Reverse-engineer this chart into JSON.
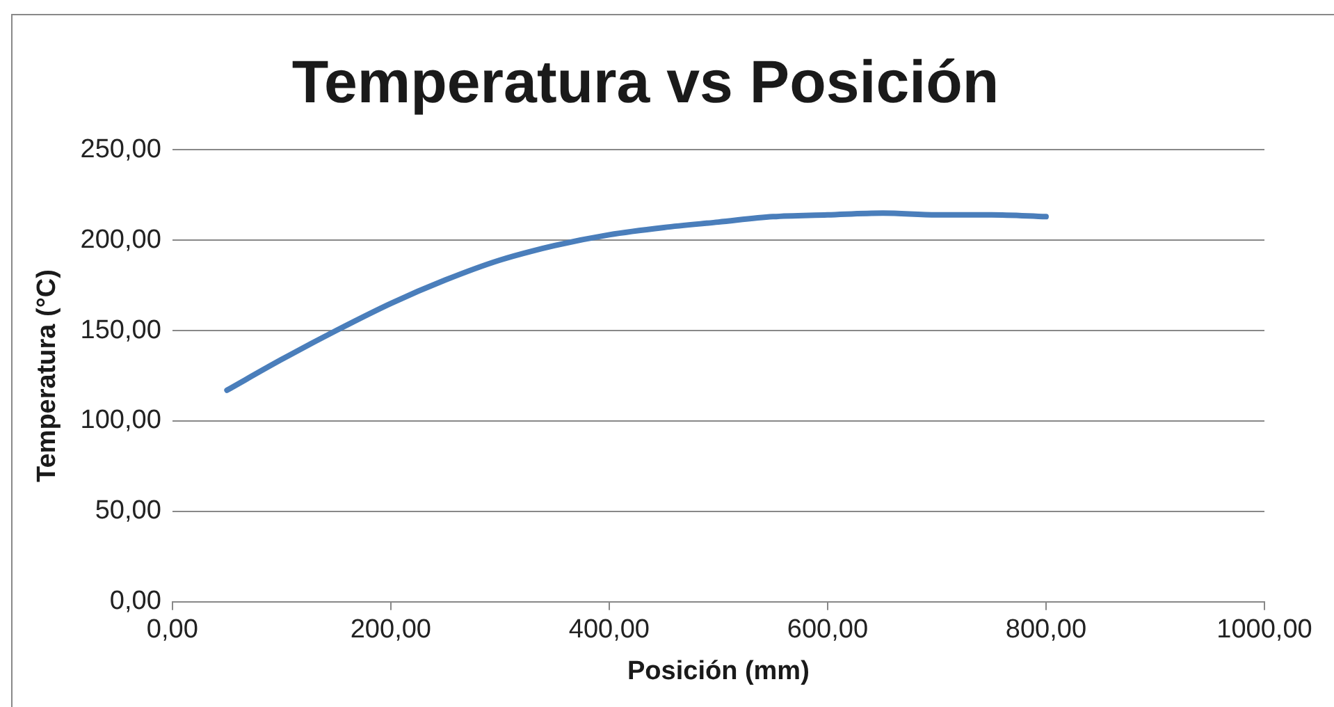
{
  "chart_data": {
    "type": "line",
    "title": "Temperatura vs Posición",
    "xlabel": "Posición (mm)",
    "ylabel": "Temperatura (°C)",
    "x": [
      50,
      100,
      150,
      200,
      250,
      300,
      350,
      400,
      450,
      500,
      550,
      600,
      650,
      700,
      750,
      800
    ],
    "series": [
      {
        "color": "#4a7ebb",
        "values": [
          117,
          134,
          150,
          165,
          178,
          189,
          197,
          203,
          207,
          210,
          213,
          214,
          215,
          214,
          214,
          213
        ]
      }
    ],
    "xlim": [
      0,
      1000
    ],
    "xticks": [
      {
        "value": 0,
        "label": "0,00"
      },
      {
        "value": 200,
        "label": "200,00"
      },
      {
        "value": 400,
        "label": "400,00"
      },
      {
        "value": 600,
        "label": "600,00"
      },
      {
        "value": 800,
        "label": "800,00"
      },
      {
        "value": 1000,
        "label": "1000,00"
      }
    ],
    "ylim": [
      0,
      250
    ],
    "yticks": [
      {
        "value": 0,
        "label": "0,00"
      },
      {
        "value": 50,
        "label": "50,00"
      },
      {
        "value": 100,
        "label": "100,00"
      },
      {
        "value": 150,
        "label": "150,00"
      },
      {
        "value": 200,
        "label": "200,00"
      },
      {
        "value": 250,
        "label": "250,00"
      }
    ],
    "grid": "y",
    "legend": false,
    "marker": "none",
    "line_style": "solid"
  }
}
